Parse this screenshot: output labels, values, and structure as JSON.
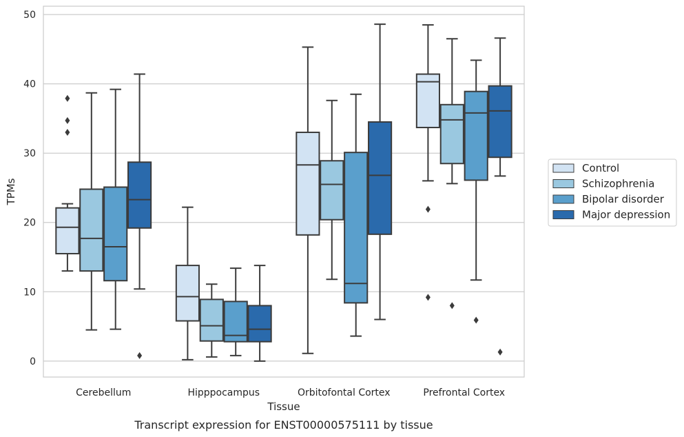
{
  "chart_data": {
    "type": "box",
    "caption": "Transcript expression for ENST00000575111 by tissue",
    "xlabel": "Tissue",
    "ylabel": "TPMs",
    "ylim": [
      -2.3,
      51.2
    ],
    "yticks": [
      0,
      10,
      20,
      30,
      40,
      50
    ],
    "grid": "y",
    "legend_position": "right",
    "categories": [
      "Cerebellum",
      "Hipppocampus",
      "Orbitofontal Cortex",
      "Prefrontal Cortex"
    ],
    "series": [
      {
        "name": "Control",
        "color": "#d2e3f3",
        "boxes": [
          {
            "whislo": 13.0,
            "q1": 15.5,
            "med": 19.3,
            "q3": 22.1,
            "whishi": 22.7,
            "fliers": [
              33.0,
              34.7,
              37.9
            ]
          },
          {
            "whislo": 0.2,
            "q1": 5.8,
            "med": 9.3,
            "q3": 13.8,
            "whishi": 22.2,
            "fliers": []
          },
          {
            "whislo": 1.1,
            "q1": 18.2,
            "med": 28.3,
            "q3": 33.0,
            "whishi": 45.3,
            "fliers": []
          },
          {
            "whislo": 26.0,
            "q1": 33.7,
            "med": 40.3,
            "q3": 41.4,
            "whishi": 48.5,
            "fliers": [
              21.9,
              9.2
            ]
          }
        ]
      },
      {
        "name": "Schizophrenia",
        "color": "#9ac8e0",
        "boxes": [
          {
            "whislo": 4.5,
            "q1": 13.0,
            "med": 17.7,
            "q3": 24.8,
            "whishi": 38.7,
            "fliers": []
          },
          {
            "whislo": 0.6,
            "q1": 2.9,
            "med": 5.1,
            "q3": 8.9,
            "whishi": 11.1,
            "fliers": []
          },
          {
            "whislo": 11.8,
            "q1": 20.4,
            "med": 25.5,
            "q3": 28.9,
            "whishi": 37.6,
            "fliers": []
          },
          {
            "whislo": 25.6,
            "q1": 28.5,
            "med": 34.8,
            "q3": 37.0,
            "whishi": 46.5,
            "fliers": [
              8.0
            ]
          }
        ]
      },
      {
        "name": "Bipolar disorder",
        "color": "#5a9fcc",
        "boxes": [
          {
            "whislo": 4.6,
            "q1": 11.6,
            "med": 16.5,
            "q3": 25.1,
            "whishi": 39.2,
            "fliers": []
          },
          {
            "whislo": 0.8,
            "q1": 2.8,
            "med": 3.7,
            "q3": 8.6,
            "whishi": 13.4,
            "fliers": []
          },
          {
            "whislo": 3.6,
            "q1": 8.4,
            "med": 11.2,
            "q3": 30.1,
            "whishi": 38.5,
            "fliers": []
          },
          {
            "whislo": 11.7,
            "q1": 26.1,
            "med": 35.8,
            "q3": 38.9,
            "whishi": 43.4,
            "fliers": [
              5.9
            ]
          }
        ]
      },
      {
        "name": "Major depression",
        "color": "#2a6aac",
        "boxes": [
          {
            "whislo": 10.4,
            "q1": 19.2,
            "med": 23.3,
            "q3": 28.7,
            "whishi": 41.4,
            "fliers": [
              0.8
            ]
          },
          {
            "whislo": 0.0,
            "q1": 2.8,
            "med": 4.6,
            "q3": 8.0,
            "whishi": 13.8,
            "fliers": []
          },
          {
            "whislo": 6.0,
            "q1": 18.3,
            "med": 26.8,
            "q3": 34.5,
            "whishi": 48.6,
            "fliers": []
          },
          {
            "whislo": 26.7,
            "q1": 29.4,
            "med": 36.1,
            "q3": 39.7,
            "whishi": 46.6,
            "fliers": [
              1.3
            ]
          }
        ]
      }
    ]
  }
}
